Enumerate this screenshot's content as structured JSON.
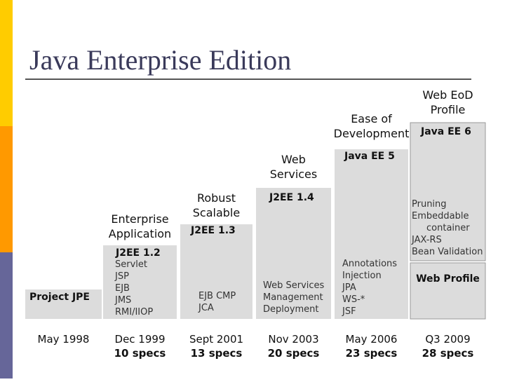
{
  "title": "Java Enterprise Edition",
  "steps": [
    {
      "heading": [],
      "version": "Project JPE",
      "features": [],
      "date": "May 1998"
    },
    {
      "heading": [
        "Enterprise",
        "Application"
      ],
      "version": "J2EE 1.2",
      "features": [
        "Servlet",
        "JSP",
        "EJB",
        "JMS",
        "RMI/IIOP"
      ],
      "date": "Dec 1999",
      "specs": "10 specs"
    },
    {
      "heading": [
        "Robust",
        "Scalable"
      ],
      "version": "J2EE 1.3",
      "features": [
        "EJB CMP",
        "JCA"
      ],
      "date": "Sept 2001",
      "specs": "13 specs"
    },
    {
      "heading": [
        "Web",
        "Services"
      ],
      "version": "J2EE 1.4",
      "features": [
        "Web Services",
        "Management",
        "Deployment"
      ],
      "date": "Nov 2003",
      "specs": "20 specs"
    },
    {
      "heading": [
        "Ease of",
        "Development"
      ],
      "version": "Java EE 5",
      "features": [
        "Annotations",
        "Injection",
        "JPA",
        "WS-*",
        "JSF"
      ],
      "date": "May 2006",
      "specs": "23 specs"
    },
    {
      "heading": [
        "Web EoD",
        "Profile"
      ],
      "version": "Java EE 6",
      "features": [
        "Pruning",
        "Embeddable",
        "container",
        "JAX-RS",
        "Bean Validation"
      ],
      "profile": "Web Profile",
      "date": "Q3 2009",
      "specs": "28 specs"
    }
  ]
}
